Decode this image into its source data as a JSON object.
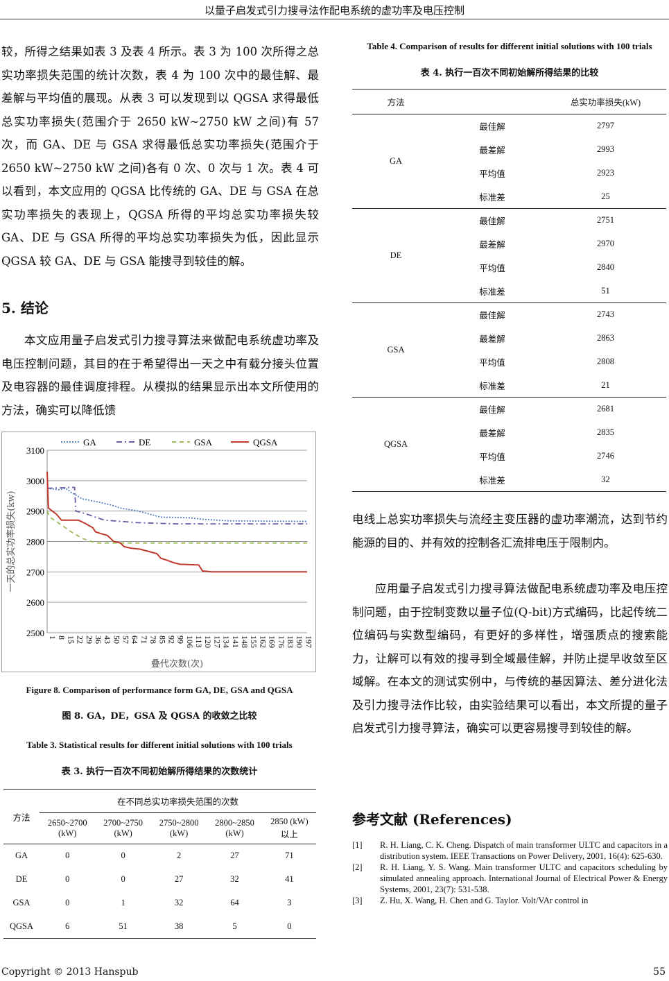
{
  "header": {
    "title": "以量子启发式引力搜寻法作配电系统的虚功率及电压控制"
  },
  "left": {
    "para1": "较，所得之结果如表 3 及表 4 所示。表 3 为 100 次所得之总实功率损失范围的统计次数，表 4 为 100 次中的最佳解、最差解与平均值的展现。从表 3 可以发现到以 QGSA 求得最低总实功率损失(范围介于 2650 kW~2750 kW 之间)有 57 次，而 GA、DE 与 GSA 求得最低总实功率损失(范围介于 2650 kW~2750 kW 之间)各有 0 次、0 次与 1 次。表 4 可以看到，本文应用的 QGSA 比传统的 GA、DE 与 GSA 在总实功率损失的表现上，QGSA 所得的平均总实功率损失较 GA、DE 与 GSA 所得的平均总实功率损失为低，因此显示 QGSA 较 GA、DE 与 GSA 能搜寻到较佳的解。",
    "section_heading": "5.  结论",
    "para2": "本文应用量子启发式引力搜寻算法来做配电系统虚功率及电压控制问题，其目的在于希望得出一天之中有载分接头位置及电容器的最佳调度排程。从模拟的结果显示出本文所使用的方法，确实可以降低馈"
  },
  "figure8": {
    "caption_en": "Figure 8. Comparison of performance form GA, DE, GSA and QGSA",
    "caption_zh": "图 8. GA，DE，GSA 及 QGSA 的收敛之比较"
  },
  "chart_data": {
    "type": "line",
    "xlabel": "叠代次数(次)",
    "ylabel": "一天的总实功率损失(kw)",
    "ylim": [
      2500,
      3100
    ],
    "xlim": [
      1,
      200
    ],
    "yticks": [
      2500,
      2600,
      2700,
      2800,
      2900,
      3000,
      3100
    ],
    "xticks": [
      1,
      8,
      15,
      22,
      29,
      36,
      43,
      50,
      57,
      64,
      71,
      78,
      85,
      92,
      99,
      106,
      113,
      120,
      127,
      134,
      141,
      148,
      155,
      162,
      169,
      176,
      183,
      190,
      197
    ],
    "grid": true,
    "legend": "top",
    "series": [
      {
        "name": "GA",
        "color": "#4f81bd",
        "dash": "dotted",
        "points": [
          [
            1,
            2975
          ],
          [
            10,
            2970
          ],
          [
            15,
            2975
          ],
          [
            20,
            2960
          ],
          [
            28,
            2940
          ],
          [
            40,
            2930
          ],
          [
            50,
            2920
          ],
          [
            57,
            2910
          ],
          [
            71,
            2900
          ],
          [
            88,
            2880
          ],
          [
            110,
            2878
          ],
          [
            120,
            2873
          ],
          [
            140,
            2868
          ],
          [
            200,
            2866
          ]
        ]
      },
      {
        "name": "DE",
        "color": "#6a5aa8",
        "dash": "dashdot",
        "points": [
          [
            1,
            2975
          ],
          [
            20,
            2978
          ],
          [
            22,
            2978
          ],
          [
            23,
            2900
          ],
          [
            30,
            2892
          ],
          [
            38,
            2880
          ],
          [
            45,
            2870
          ],
          [
            70,
            2862
          ],
          [
            100,
            2858
          ],
          [
            200,
            2858
          ]
        ]
      },
      {
        "name": "GSA",
        "color": "#9bbb59",
        "dash": "dashed",
        "points": [
          [
            1,
            2900
          ],
          [
            3,
            2880
          ],
          [
            10,
            2860
          ],
          [
            20,
            2830
          ],
          [
            28,
            2810
          ],
          [
            35,
            2800
          ],
          [
            40,
            2795
          ],
          [
            200,
            2795
          ]
        ]
      },
      {
        "name": "QGSA",
        "color": "#c0392b",
        "dash": "solid",
        "points": [
          [
            1,
            3030
          ],
          [
            2,
            2910
          ],
          [
            5,
            2900
          ],
          [
            8,
            2890
          ],
          [
            12,
            2870
          ],
          [
            25,
            2870
          ],
          [
            30,
            2860
          ],
          [
            36,
            2845
          ],
          [
            38,
            2832
          ],
          [
            42,
            2826
          ],
          [
            47,
            2820
          ],
          [
            52,
            2800
          ],
          [
            57,
            2795
          ],
          [
            60,
            2783
          ],
          [
            65,
            2778
          ],
          [
            72,
            2775
          ],
          [
            78,
            2768
          ],
          [
            85,
            2760
          ],
          [
            88,
            2745
          ],
          [
            93,
            2738
          ],
          [
            98,
            2730
          ],
          [
            103,
            2725
          ],
          [
            117,
            2723
          ],
          [
            120,
            2703
          ],
          [
            127,
            2700
          ],
          [
            200,
            2700
          ]
        ]
      }
    ]
  },
  "table3": {
    "caption_en": "Table 3. Statistical results for different initial solutions with 100 trials",
    "caption_zh": "表 3.  执行一百次不同初始解所得结果的次数统计",
    "method_header": "方法",
    "group_header": "在不同总实功率损失范围的次数",
    "columns": [
      [
        "2650~2700",
        "(kW)"
      ],
      [
        "2700~2750",
        "(kW)"
      ],
      [
        "2750~2800",
        "(kW)"
      ],
      [
        "2800~2850",
        "(kW)"
      ],
      [
        "2850 (kW)",
        "以上"
      ]
    ],
    "rows": [
      [
        "GA",
        "0",
        "0",
        "2",
        "27",
        "71"
      ],
      [
        "DE",
        "0",
        "0",
        "27",
        "32",
        "41"
      ],
      [
        "GSA",
        "0",
        "1",
        "32",
        "64",
        "3"
      ],
      [
        "QGSA",
        "6",
        "51",
        "38",
        "5",
        "0"
      ]
    ]
  },
  "table4": {
    "caption_en": "Table 4. Comparison of results for different initial solutions with 100 trials",
    "caption_zh": "表 4.  执行一百次不同初始解所得结果的比较",
    "col_method": "方法",
    "col_loss": "总实功率损失(kW)",
    "stat_labels": [
      "最佳解",
      "最差解",
      "平均值",
      "标准差"
    ],
    "groups": [
      {
        "method": "GA",
        "values": [
          "2797",
          "2993",
          "2923",
          "25"
        ]
      },
      {
        "method": "DE",
        "values": [
          "2751",
          "2970",
          "2840",
          "51"
        ]
      },
      {
        "method": "GSA",
        "values": [
          "2743",
          "2863",
          "2808",
          "21"
        ]
      },
      {
        "method": "QGSA",
        "values": [
          "2681",
          "2835",
          "2746",
          "32"
        ]
      }
    ]
  },
  "right": {
    "para1": "电线上总实功率损失与流经主变压器的虚功率潮流，达到节约能源的目的、并有效的控制各汇流排电压于限制内。",
    "para2": "应用量子启发式引力搜寻算法做配电系统虚功率及电压控制问题，由于控制变数以量子位(Q-bit)方式编码，比起传统二位编码与实数型编码，有更好的多样性，增强质点的搜索能力，让解可以有效的搜寻到全域最佳解，并防止提早收敛至区域解。在本文的测试实例中，与传统的基因算法、差分进化法及引力搜寻法作比较，由实验结果可以看出，本文所提的量子启发式引力搜寻算法，确实可以更容易搜寻到较佳的解。",
    "references_heading": "参考文献  (References)",
    "references": [
      {
        "num": "[1]",
        "text": "R. H. Liang, C. K. Cheng. Dispatch of main transformer ULTC and capacitors in a distribution system. IEEE Transactions on Power Delivery, 2001, 16(4): 625-630."
      },
      {
        "num": "[2]",
        "text": "R. H. Liang, Y. S. Wang. Main transformer ULTC and capacitors scheduling by simulated annealing approach. International Journal of Electrical Power & Energy Systems, 2001, 23(7): 531-538."
      },
      {
        "num": "[3]",
        "text": "Z. Hu, X. Wang, H. Chen and G. Taylor. Volt/VAr control in"
      }
    ]
  },
  "footer": {
    "copyright": "Copyright © 2013 Hanspub",
    "page": "55"
  }
}
